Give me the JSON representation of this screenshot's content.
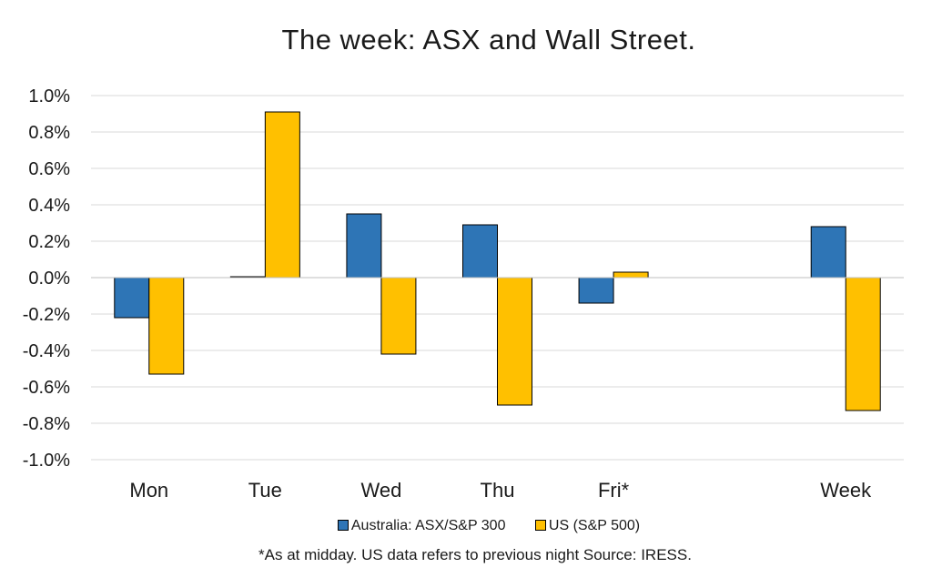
{
  "chart_data": {
    "type": "bar",
    "title": "The week:  ASX and Wall Street.",
    "categories": [
      "Mon",
      "Tue",
      "Wed",
      "Thu",
      "Fri*",
      "",
      "Week"
    ],
    "series": [
      {
        "name": "Australia: ASX/S&P 300",
        "color": "#2e75b6",
        "values": [
          -0.22,
          0.005,
          0.35,
          0.29,
          -0.14,
          null,
          0.28
        ]
      },
      {
        "name": "US (S&P 500)",
        "color": "#ffc000",
        "values": [
          -0.53,
          0.91,
          -0.42,
          -0.7,
          0.03,
          null,
          -0.73
        ]
      }
    ],
    "ylim": [
      -1.0,
      1.0
    ],
    "yticks": [
      "1.0%",
      "0.8%",
      "0.6%",
      "0.4%",
      "0.2%",
      "0.0%",
      "-0.2%",
      "-0.4%",
      "-0.6%",
      "-0.8%",
      "-1.0%"
    ],
    "grid": true,
    "legend_position": "bottom",
    "note": "*As at midday. US data refers to previous night  Source:  IRESS."
  }
}
